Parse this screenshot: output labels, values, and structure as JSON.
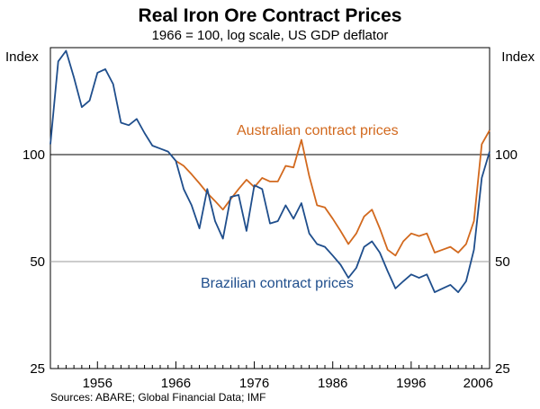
{
  "chart_data": {
    "type": "line",
    "title": "Real Iron Ore Contract Prices",
    "subtitle": "1966 = 100, log scale, US GDP deflator",
    "ylabel_left": "Index",
    "ylabel_right": "Index",
    "y_scale": "log",
    "ylim": [
      25,
      200
    ],
    "y_ticks": [
      25,
      50,
      100
    ],
    "x_range": [
      1950,
      2006
    ],
    "x_ticks": [
      1956,
      1966,
      1976,
      1986,
      1996,
      2006
    ],
    "reference_line": 100,
    "source": "Sources: ABARE; Global Financial Data; IMF",
    "series": [
      {
        "name": "Brazilian contract prices",
        "label": "Brazilian contract prices",
        "color": "#1f4e8c",
        "x": [
          1950,
          1951,
          1952,
          1953,
          1954,
          1955,
          1956,
          1957,
          1958,
          1959,
          1960,
          1961,
          1962,
          1963,
          1964,
          1965,
          1966,
          1967,
          1968,
          1969,
          1970,
          1971,
          1972,
          1973,
          1974,
          1975,
          1976,
          1977,
          1978,
          1979,
          1980,
          1981,
          1982,
          1983,
          1984,
          1985,
          1986,
          1987,
          1988,
          1989,
          1990,
          1991,
          1992,
          1993,
          1994,
          1995,
          1996,
          1997,
          1998,
          1999,
          2000,
          2001,
          2002,
          2003,
          2004,
          2005,
          2006
        ],
        "values": [
          107,
          183,
          196,
          165,
          136,
          142,
          170,
          174,
          158,
          123,
          121,
          126,
          115,
          106,
          104,
          102,
          96,
          80,
          72,
          62,
          80,
          65,
          58,
          76,
          77,
          61,
          82,
          80,
          64,
          65,
          72,
          66,
          73,
          60,
          56,
          55,
          52,
          49,
          45,
          48,
          55,
          57,
          53,
          47,
          42,
          44,
          46,
          45,
          46,
          41,
          42,
          43,
          41,
          44,
          54,
          86,
          102
        ]
      },
      {
        "name": "Australian contract prices",
        "label": "Australian contract prices",
        "color": "#d2691e",
        "x": [
          1966,
          1967,
          1968,
          1969,
          1970,
          1971,
          1972,
          1973,
          1974,
          1975,
          1976,
          1977,
          1978,
          1979,
          1980,
          1981,
          1982,
          1983,
          1984,
          1985,
          1986,
          1987,
          1988,
          1989,
          1990,
          1991,
          1992,
          1993,
          1994,
          1995,
          1996,
          1997,
          1998,
          1999,
          2000,
          2001,
          2002,
          2003,
          2004,
          2005,
          2006
        ],
        "values": [
          96,
          93,
          88,
          83,
          78,
          74,
          70,
          75,
          80,
          85,
          81,
          86,
          84,
          84,
          93,
          92,
          110,
          87,
          72,
          71,
          66,
          61,
          56,
          60,
          67,
          70,
          62,
          54,
          52,
          57,
          60,
          59,
          60,
          53,
          54,
          55,
          53,
          56,
          65,
          107,
          117
        ]
      }
    ]
  }
}
